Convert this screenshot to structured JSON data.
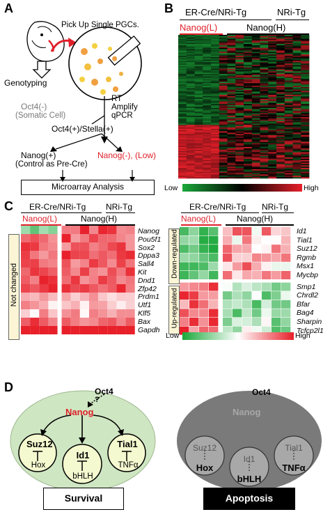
{
  "panels": {
    "a": "A",
    "b": "B",
    "c": "C",
    "d": "D"
  },
  "panel_a": {
    "pick_up": "Pick Up Single PGCs.",
    "genotyping": "Genotyping",
    "rt": "RT",
    "amplify": "Amplify",
    "qpcr": "qPCR",
    "oct4_neg": "Oct4(-)",
    "somatic": "(Somatic Cell)",
    "oct4_pos": "Oct4(+)/Stella(+)",
    "nanog_pos": "Nanog(+)",
    "control": "(Control as Pre-Cre)",
    "nanog_neg": "Nanog(-), (Low)",
    "microarray": "Microarray Analysis",
    "colors": {
      "accent": "#e0202a",
      "cell_orange": "#f0a040",
      "cell_yellow": "#f4d040"
    }
  },
  "panel_b": {
    "group1": "ER-Cre/NRi-Tg",
    "group2": "NRi-Tg",
    "nanog_l": "Nanog(L)",
    "nanog_h": "Nanog(H)",
    "scale_low": "Low",
    "scale_high": "High",
    "colors": {
      "low": "#1aa83a",
      "mid": "#000000",
      "high": "#e8202a"
    }
  },
  "panel_c": {
    "group1": "ER-Cre/NRi-Tg",
    "group2": "NRi-Tg",
    "nanog_l": "Nanog(L)",
    "nanog_h": "Nanog(H)",
    "not_changed": "Not changed",
    "down_regulated": "Down-regulated",
    "up_regulated": "Up-regulated",
    "scale_low": "Low",
    "scale_high": "High",
    "left_genes": [
      "Nanog",
      "Pou5f1",
      "Sox2",
      "Dppa3",
      "Sall4",
      "Kit",
      "Dnd1",
      "Zfp42",
      "Prdm1",
      "Utf1",
      "Klf5",
      "Bax",
      "Gapdh"
    ],
    "down_genes": [
      "Id1",
      "Tial1",
      "Suz12",
      "Rgmb",
      "Msx1",
      "Mycbp"
    ],
    "up_genes": [
      "Smp1",
      "Chrdl2",
      "Bfar",
      "Bag4",
      "Sharpin",
      "Tcfcp2l1"
    ]
  },
  "panel_d": {
    "left": {
      "oct4": "Oct4",
      "question": "?",
      "nanog": "Nanog",
      "suz12": "Suz12",
      "hox": "Hox",
      "id1": "Id1",
      "bhlh": "bHLH",
      "tial1": "Tial1",
      "tnfa": "TNFα",
      "outcome": "Survival"
    },
    "right": {
      "oct4": "Oct4",
      "nanog": "Nanog",
      "suz12": "Suz12",
      "hox": "Hox",
      "id1": "Id1",
      "bhlh": "bHLH",
      "tial1": "Tial1",
      "tnfa": "TNFα",
      "outcome": "Apoptosis"
    },
    "colors": {
      "survival_bg": "#cfe6c2",
      "apoptosis_bg": "#7a7a7a",
      "apoptosis_box": "#000000"
    }
  }
}
